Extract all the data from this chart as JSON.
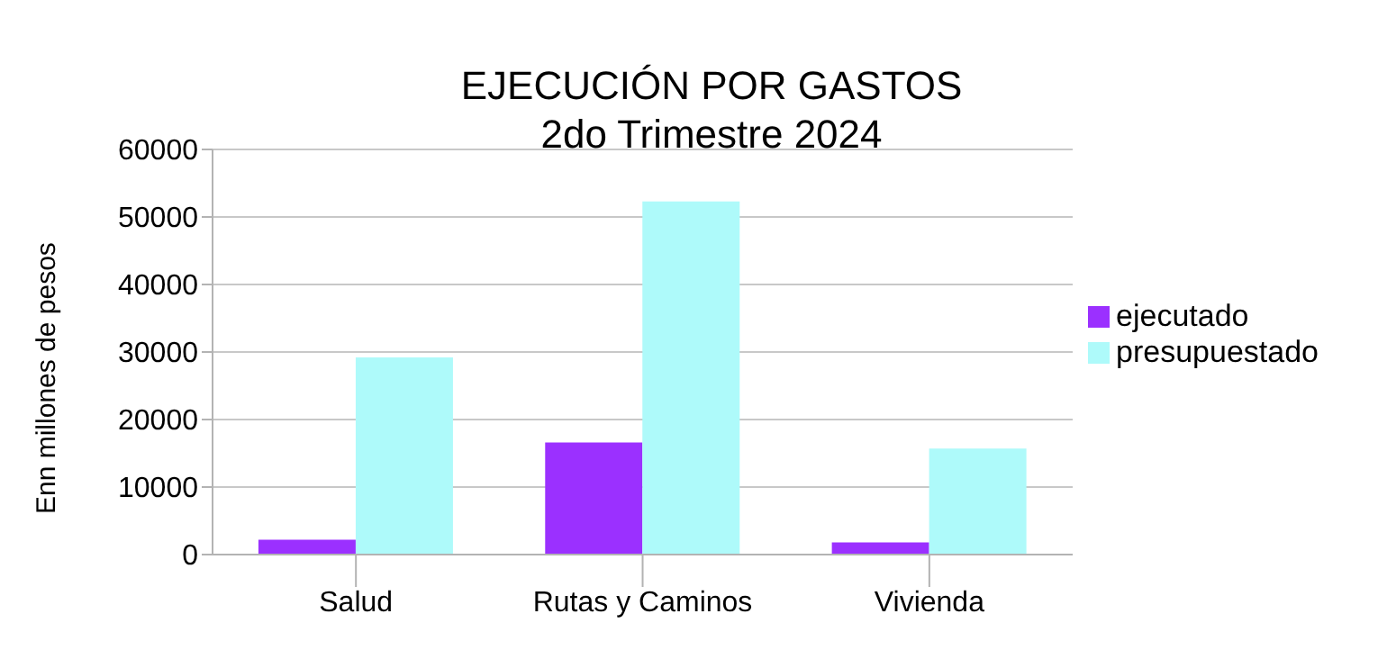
{
  "chart_data": {
    "type": "bar",
    "title": "EJECUCIÓN POR GASTOS",
    "subtitle": "2do Trimestre 2024",
    "ylabel": "Enn millones de pesos",
    "categories": [
      "Salud",
      "Rutas y Caminos",
      "Vivienda"
    ],
    "series": [
      {
        "name": "ejecutado",
        "color": "#9b30ff",
        "values": [
          2200,
          16600,
          1800
        ]
      },
      {
        "name": "presupuestado",
        "color": "#aefafa",
        "values": [
          29200,
          52300,
          15700
        ]
      }
    ],
    "ylim": [
      0,
      60000
    ],
    "yticks": [
      0,
      10000,
      20000,
      30000,
      40000,
      50000,
      60000
    ],
    "grid": "y",
    "legend": "right"
  }
}
